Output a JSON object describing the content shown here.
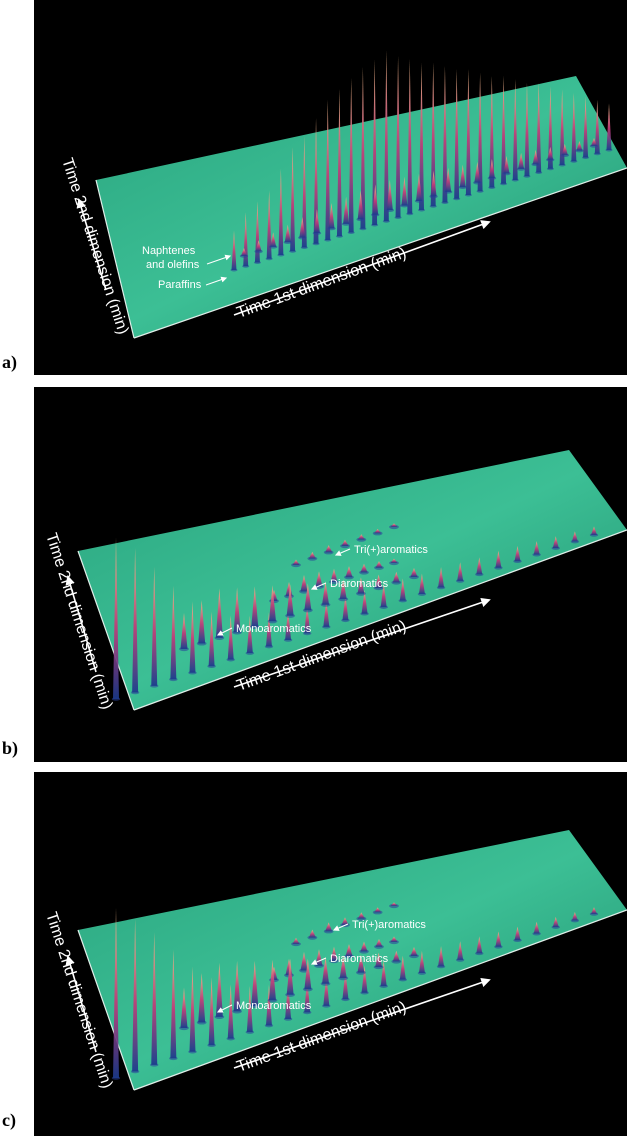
{
  "chart_data": [
    {
      "type": "surface3d",
      "panel_label": "a)",
      "xlabel": "Time 1st dimension (min)",
      "ylabel": "Time 2nd dimension (min)",
      "annotations": [
        {
          "text": "Naphtenes"
        },
        {
          "text": "and olefins"
        },
        {
          "text": "Paraffins"
        }
      ],
      "paraffin_peaks": [
        0.22,
        0.3,
        0.34,
        0.38,
        0.48,
        0.58,
        0.62,
        0.7,
        0.78,
        0.82,
        0.86,
        0.9,
        0.92,
        0.95,
        0.9,
        0.86,
        0.82,
        0.8,
        0.76,
        0.72,
        0.7,
        0.66,
        0.62,
        0.6,
        0.56,
        0.52,
        0.5,
        0.46,
        0.42,
        0.38,
        0.34,
        0.3,
        0.26
      ],
      "naphthene_peaks": [
        0.1,
        0.14,
        0.18,
        0.22,
        0.26,
        0.3,
        0.32,
        0.34,
        0.36,
        0.38,
        0.38,
        0.36,
        0.34,
        0.32,
        0.3,
        0.28,
        0.26,
        0.24,
        0.22,
        0.2,
        0.18,
        0.16,
        0.14,
        0.12,
        0.1
      ]
    },
    {
      "type": "surface3d",
      "panel_label": "b)",
      "xlabel": "Time 1st dimension (min)",
      "ylabel": "Time 2nd dimension (min)",
      "annotations": [
        {
          "text": "Tri(+)aromatics"
        },
        {
          "text": "Diaromatics"
        },
        {
          "text": "Monoaromatics"
        }
      ],
      "paraffin_peaks": [
        0.95,
        0.85,
        0.7,
        0.55,
        0.42,
        0.32,
        0.26,
        0.22,
        0.2,
        0.18,
        0.17,
        0.16,
        0.15,
        0.14,
        0.14,
        0.13,
        0.12,
        0.12,
        0.11,
        0.1,
        0.1,
        0.09,
        0.08,
        0.07,
        0.06,
        0.05
      ],
      "mono_peaks": [
        0.4,
        0.48,
        0.55,
        0.5,
        0.45,
        0.4,
        0.35,
        0.3,
        0.26,
        0.22,
        0.18,
        0.15,
        0.12,
        0.1
      ],
      "di_peaks": [
        0.2,
        0.26,
        0.3,
        0.28,
        0.24,
        0.2,
        0.16,
        0.12,
        0.08
      ],
      "tri_peaks": [
        0.12,
        0.15,
        0.16,
        0.14,
        0.12,
        0.1,
        0.08
      ]
    },
    {
      "type": "surface3d",
      "panel_label": "c)",
      "xlabel": "Time 1st dimension (min)",
      "ylabel": "Time 2nd dimension (min)",
      "annotations": [
        {
          "text": "Tri(+)aromatics"
        },
        {
          "text": "Diaromatics"
        },
        {
          "text": "Monoaromatics"
        }
      ],
      "paraffin_peaks": [
        1.0,
        0.9,
        0.78,
        0.64,
        0.5,
        0.4,
        0.32,
        0.27,
        0.24,
        0.22,
        0.2,
        0.18,
        0.17,
        0.16,
        0.15,
        0.14,
        0.13,
        0.12,
        0.11,
        0.1,
        0.09,
        0.08,
        0.07,
        0.06,
        0.05,
        0.04
      ],
      "mono_peaks": [
        0.45,
        0.55,
        0.6,
        0.56,
        0.5,
        0.45,
        0.4,
        0.34,
        0.3,
        0.25,
        0.2,
        0.16,
        0.12,
        0.1
      ],
      "di_peaks": [
        0.24,
        0.3,
        0.34,
        0.3,
        0.26,
        0.22,
        0.18,
        0.14,
        0.1
      ],
      "tri_peaks": [
        0.14,
        0.18,
        0.2,
        0.17,
        0.14,
        0.11,
        0.08
      ]
    }
  ],
  "colors": {
    "background": "#000000",
    "plane": "#22a57c",
    "plane_highlight": "#3fc29a",
    "peak_low": "#1b3a8c",
    "peak_mid": "#c23a78",
    "peak_high": "#e8b07a"
  }
}
